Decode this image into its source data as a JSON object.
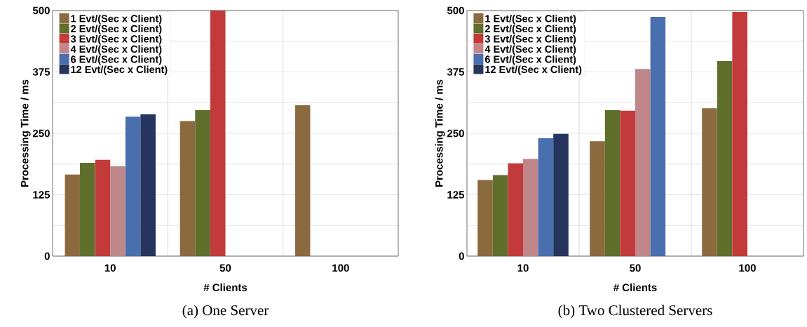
{
  "chart_data": [
    {
      "type": "bar",
      "categories": [
        "10",
        "50",
        "100"
      ],
      "xlabel": "# Clients",
      "ylabel": "Processing Time / ms",
      "ylim": [
        0,
        500
      ],
      "yticks": [
        0,
        {
          "value": 62.5,
          "label": null
        },
        125,
        {
          "value": 187.5,
          "label": null
        },
        250,
        {
          "value": 312.5,
          "label": null
        },
        375,
        {
          "value": 437.5,
          "label": null
        },
        500
      ],
      "grid": true,
      "legend": "top left",
      "annotations": [
        "(a)  One Server"
      ],
      "series": [
        {
          "name": "1 Evt/(Sec x Client)",
          "color": "#8b6a40",
          "values": [
            166,
            275,
            307
          ]
        },
        {
          "name": "2 Evt/(Sec x Client)",
          "color": "#5f6e2a",
          "values": [
            190,
            297,
            null
          ]
        },
        {
          "name": "3 Evt/(Sec x Client)",
          "color": "#c23a3a",
          "values": [
            196,
            500,
            null
          ]
        },
        {
          "name": "4 Evt/(Sec x Client)",
          "color": "#c0878a",
          "values": [
            183,
            null,
            null
          ]
        },
        {
          "name": "6 Evt/(Sec x Client)",
          "color": "#4a6fae",
          "values": [
            284,
            null,
            null
          ]
        },
        {
          "name": "12 Evt/(Sec x Client)",
          "color": "#25355e",
          "values": [
            289,
            null,
            null
          ]
        }
      ]
    },
    {
      "type": "bar",
      "categories": [
        "10",
        "50",
        "100"
      ],
      "xlabel": "# Clients",
      "ylabel": "Processing Time / ms",
      "ylim": [
        0,
        500
      ],
      "yticks": [
        0,
        {
          "value": 62.5,
          "label": null
        },
        125,
        {
          "value": 187.5,
          "label": null
        },
        250,
        {
          "value": 312.5,
          "label": null
        },
        375,
        {
          "value": 437.5,
          "label": null
        },
        500
      ],
      "grid": true,
      "legend": "top left",
      "annotations": [
        "(b)  Two Clustered Servers"
      ],
      "series": [
        {
          "name": "1 Evt/(Sec x Client)",
          "color": "#8b6a40",
          "values": [
            155,
            234,
            301
          ]
        },
        {
          "name": "2 Evt/(Sec x Client)",
          "color": "#5f6e2a",
          "values": [
            165,
            297,
            397
          ]
        },
        {
          "name": "3 Evt/(Sec x Client)",
          "color": "#c23a3a",
          "values": [
            189,
            296,
            497
          ]
        },
        {
          "name": "4 Evt/(Sec x Client)",
          "color": "#c0878a",
          "values": [
            198,
            381,
            null
          ]
        },
        {
          "name": "6 Evt/(Sec x Client)",
          "color": "#4a6fae",
          "values": [
            240,
            487,
            null
          ]
        },
        {
          "name": "12 Evt/(Sec x Client)",
          "color": "#25355e",
          "values": [
            249,
            null,
            null
          ]
        }
      ]
    }
  ]
}
